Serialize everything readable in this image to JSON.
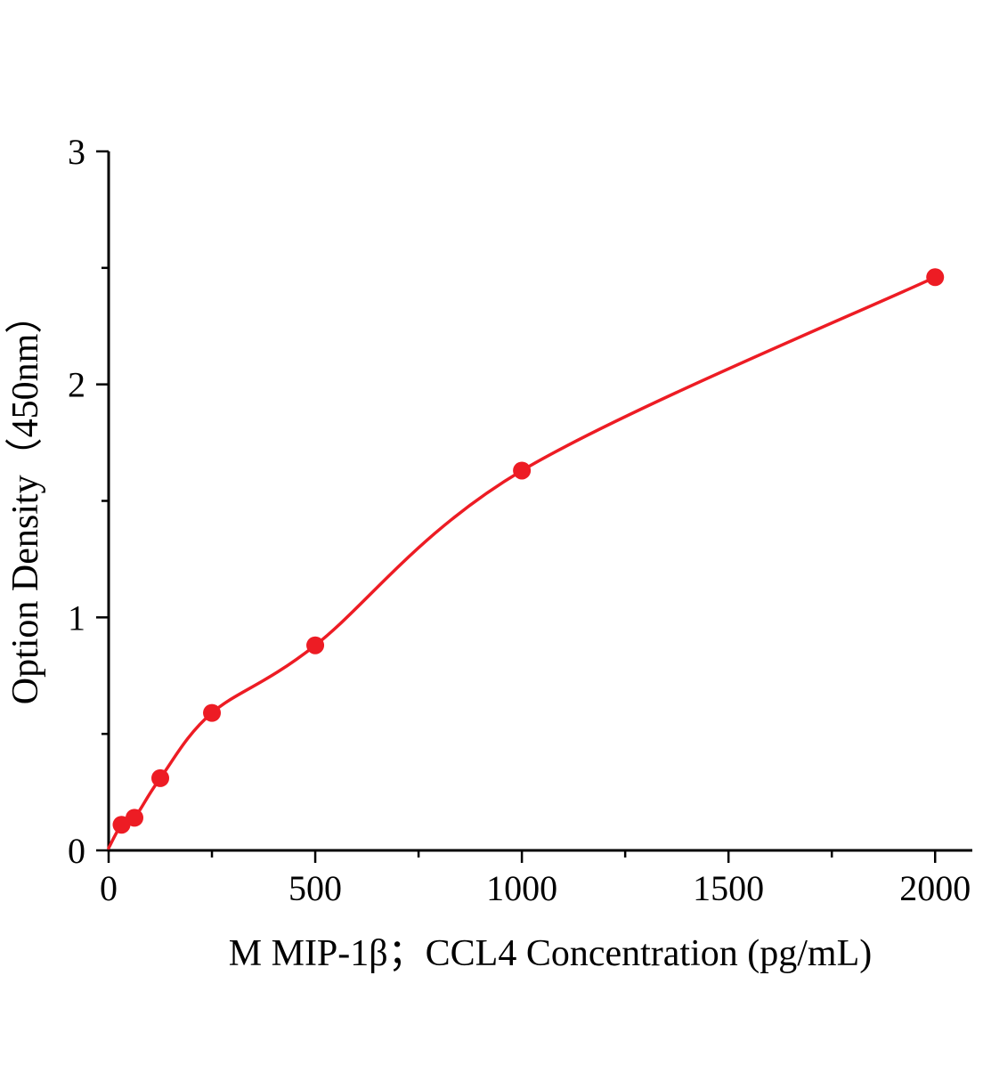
{
  "chart_data": {
    "type": "scatter",
    "title": "",
    "xlabel": "M MIP-1β；CCL4 Concentration (pg/mL)",
    "ylabel": "Option Density（450nm）",
    "x": [
      31.25,
      62.5,
      125,
      250,
      500,
      1000,
      2000
    ],
    "y": [
      0.11,
      0.14,
      0.31,
      0.59,
      0.88,
      1.63,
      2.46
    ],
    "curve_start_x": 0,
    "curve_start_y": 0.01,
    "xlim": [
      0,
      2090
    ],
    "ylim": [
      0,
      3
    ],
    "x_major_ticks": [
      0,
      500,
      1000,
      1500,
      2000
    ],
    "x_minor_ticks": [
      250,
      750,
      1250,
      1750
    ],
    "y_major_ticks": [
      0,
      1,
      2,
      3
    ],
    "y_minor_ticks": [
      0.5,
      1.5,
      2.5
    ],
    "grid": false,
    "legend": null,
    "line_color": "#ed1c24",
    "marker_color": "#ed1c24",
    "axis_color": "#000000"
  }
}
